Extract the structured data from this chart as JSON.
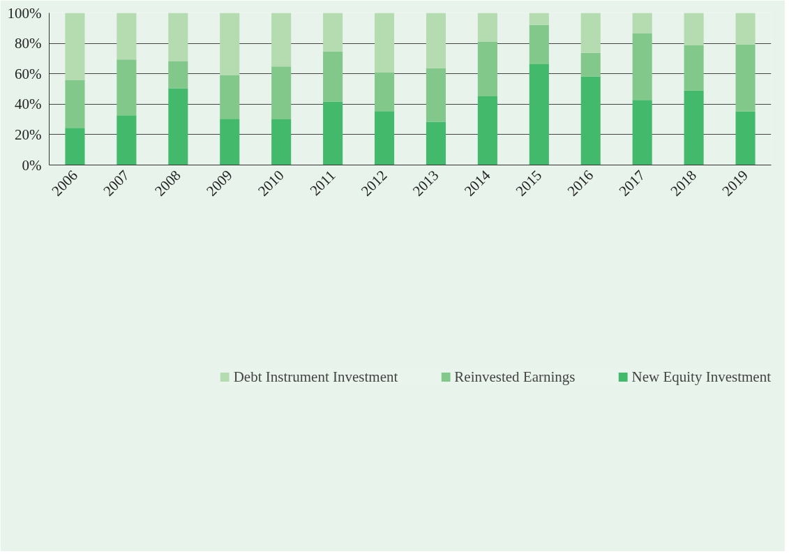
{
  "chart_data": {
    "type": "bar",
    "stacked": true,
    "categories": [
      "2006",
      "2007",
      "2008",
      "2009",
      "2010",
      "2011",
      "2012",
      "2013",
      "2014",
      "2015",
      "2016",
      "2017",
      "2018",
      "2019"
    ],
    "series": [
      {
        "name": "New Equity Investment",
        "color": "#43b96b",
        "values": [
          24.4,
          32.7,
          50.5,
          30.4,
          30.0,
          41.8,
          35.4,
          28.4,
          45.2,
          66.3,
          58.1,
          42.8,
          49.0,
          35.2
        ]
      },
      {
        "name": "Reinvested Earnings",
        "color": "#82c88b",
        "values": [
          31.3,
          36.7,
          17.6,
          28.5,
          34.8,
          32.8,
          25.6,
          35.3,
          36.0,
          25.8,
          15.6,
          43.9,
          29.7,
          44.1
        ]
      },
      {
        "name": "Debt Instrument Investment",
        "color": "#b4dcb0",
        "values": [
          44.3,
          30.6,
          31.9,
          41.1,
          35.2,
          25.4,
          39.0,
          36.3,
          18.8,
          7.9,
          26.3,
          13.3,
          21.3,
          20.7
        ]
      }
    ],
    "ylim": [
      0,
      100
    ],
    "yticks": [
      {
        "value": 0,
        "label": "0%"
      },
      {
        "value": 20,
        "label": "20%"
      },
      {
        "value": 40,
        "label": "40%"
      },
      {
        "value": 60,
        "label": "60%"
      },
      {
        "value": 80,
        "label": "80%"
      },
      {
        "value": 100,
        "label": "100%"
      }
    ],
    "grid": "y",
    "legend": "bottom"
  }
}
